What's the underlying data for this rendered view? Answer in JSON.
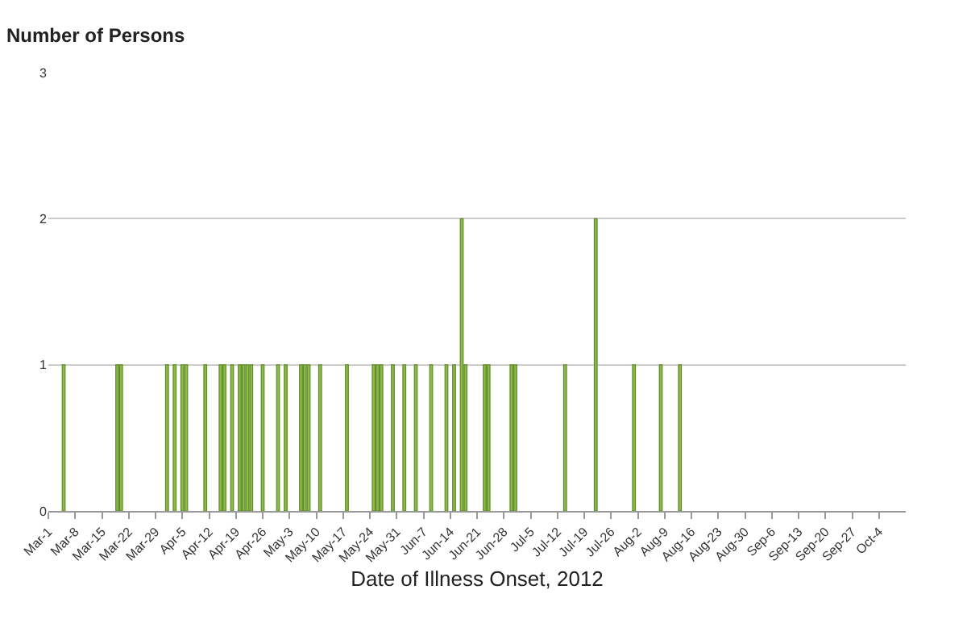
{
  "chart_data": {
    "type": "bar",
    "ylabel": "Number of Persons",
    "xlabel": "Date of Illness Onset, 2012",
    "x": [
      "2012-03-05",
      "2012-03-19",
      "2012-03-20",
      "2012-04-01",
      "2012-04-03",
      "2012-04-05",
      "2012-04-06",
      "2012-04-11",
      "2012-04-15",
      "2012-04-16",
      "2012-04-18",
      "2012-04-20",
      "2012-04-21",
      "2012-04-22",
      "2012-04-23",
      "2012-04-26",
      "2012-04-30",
      "2012-05-02",
      "2012-05-06",
      "2012-05-07",
      "2012-05-08",
      "2012-05-11",
      "2012-05-18",
      "2012-05-25",
      "2012-05-26",
      "2012-05-27",
      "2012-05-30",
      "2012-06-02",
      "2012-06-05",
      "2012-06-09",
      "2012-06-13",
      "2012-06-15",
      "2012-06-17",
      "2012-06-18",
      "2012-06-23",
      "2012-06-24",
      "2012-06-30",
      "2012-07-01",
      "2012-07-14",
      "2012-07-22",
      "2012-08-01",
      "2012-08-08",
      "2012-08-13"
    ],
    "values": [
      1,
      1,
      1,
      1,
      1,
      1,
      1,
      1,
      1,
      1,
      1,
      1,
      1,
      1,
      1,
      1,
      1,
      1,
      1,
      1,
      1,
      1,
      1,
      1,
      1,
      1,
      1,
      1,
      1,
      1,
      1,
      1,
      2,
      1,
      1,
      1,
      1,
      1,
      1,
      2,
      1,
      1,
      1
    ],
    "color": "#8dbb45",
    "xlim": [
      "2012-03-01",
      "2012-10-11"
    ],
    "xticks": [
      {
        "value": "2012-03-01",
        "label": "Mar-1"
      },
      {
        "value": "2012-03-08",
        "label": "Mar-8"
      },
      {
        "value": "2012-03-15",
        "label": "Mar-15"
      },
      {
        "value": "2012-03-22",
        "label": "Mar-22"
      },
      {
        "value": "2012-03-29",
        "label": "Mar-29"
      },
      {
        "value": "2012-04-05",
        "label": "Apr-5"
      },
      {
        "value": "2012-04-12",
        "label": "Apr-12"
      },
      {
        "value": "2012-04-19",
        "label": "Apr-19"
      },
      {
        "value": "2012-04-26",
        "label": "Apr-26"
      },
      {
        "value": "2012-05-03",
        "label": "May-3"
      },
      {
        "value": "2012-05-10",
        "label": "May-10"
      },
      {
        "value": "2012-05-17",
        "label": "May-17"
      },
      {
        "value": "2012-05-24",
        "label": "May-24"
      },
      {
        "value": "2012-05-31",
        "label": "May-31"
      },
      {
        "value": "2012-06-07",
        "label": "Jun-7"
      },
      {
        "value": "2012-06-14",
        "label": "Jun-14"
      },
      {
        "value": "2012-06-21",
        "label": "Jun-21"
      },
      {
        "value": "2012-06-28",
        "label": "Jun-28"
      },
      {
        "value": "2012-07-05",
        "label": "Jul-5"
      },
      {
        "value": "2012-07-12",
        "label": "Jul-12"
      },
      {
        "value": "2012-07-19",
        "label": "Jul-19"
      },
      {
        "value": "2012-07-26",
        "label": "Jul-26"
      },
      {
        "value": "2012-08-02",
        "label": "Aug-2"
      },
      {
        "value": "2012-08-09",
        "label": "Aug-9"
      },
      {
        "value": "2012-08-16",
        "label": "Aug-16"
      },
      {
        "value": "2012-08-23",
        "label": "Aug-23"
      },
      {
        "value": "2012-08-30",
        "label": "Aug-30"
      },
      {
        "value": "2012-09-06",
        "label": "Sep-6"
      },
      {
        "value": "2012-09-13",
        "label": "Sep-13"
      },
      {
        "value": "2012-09-20",
        "label": "Sep-20"
      },
      {
        "value": "2012-09-27",
        "label": "Sep-27"
      },
      {
        "value": "2012-10-04",
        "label": "Oct-4"
      }
    ],
    "ylim": [
      0,
      3
    ],
    "yticks": [
      0,
      1,
      2,
      3
    ],
    "grid": "y"
  }
}
